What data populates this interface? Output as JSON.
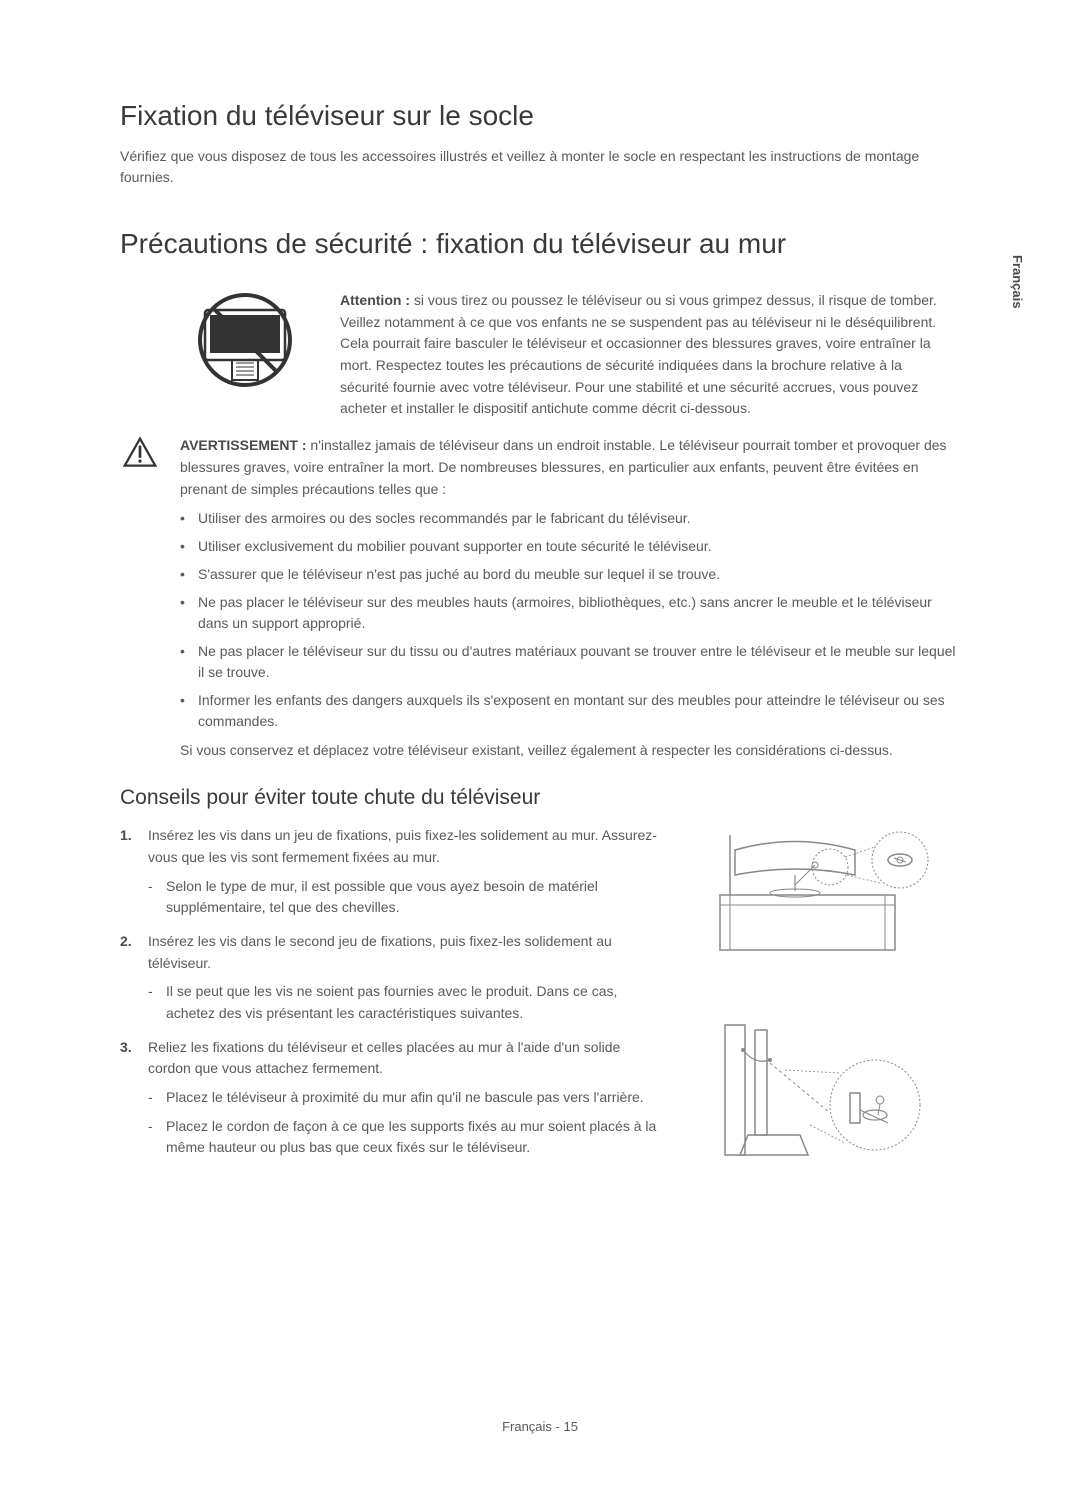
{
  "sideTab": "Français",
  "heading1": "Fixation du téléviseur sur le socle",
  "intro1": "Vérifiez que vous disposez de tous les accessoires illustrés et veillez à monter le socle en respectant les instructions de montage fournies.",
  "heading2": "Précautions de sécurité : fixation du téléviseur au mur",
  "attentionLabel": "Attention :",
  "attentionBody": " si vous tirez ou poussez le téléviseur ou si vous grimpez dessus, il risque de tomber. Veillez notamment à ce que vos enfants ne se suspendent pas au téléviseur ni le déséquilibrent. Cela pourrait faire basculer le téléviseur et occasionner des blessures graves, voire entraîner la mort. Respectez toutes les précautions de sécurité indiquées dans la brochure relative à la sécurité fournie avec votre téléviseur. Pour une stabilité et une sécurité accrues, vous pouvez acheter et installer le dispositif antichute comme décrit ci-dessous.",
  "warningLabel": "AVERTISSEMENT :",
  "warningBody": " n'installez jamais de téléviseur dans un endroit instable. Le téléviseur pourrait tomber et provoquer des blessures graves, voire entraîner la mort. De nombreuses blessures, en particulier aux enfants, peuvent être évitées en prenant de simples précautions telles que :",
  "bullets": [
    "Utiliser des armoires ou des socles recommandés par le fabricant du téléviseur.",
    "Utiliser exclusivement du mobilier pouvant supporter en toute sécurité le téléviseur.",
    "S'assurer que le téléviseur n'est pas juché au bord du meuble sur lequel il se trouve.",
    "Ne pas placer le téléviseur sur des meubles hauts (armoires, bibliothèques, etc.) sans ancrer le meuble et le téléviseur dans un support approprié.",
    "Ne pas placer le téléviseur sur du tissu ou d'autres matériaux pouvant se trouver entre le téléviseur et le meuble sur lequel il se trouve.",
    "Informer les enfants des dangers auxquels ils s'exposent en montant sur des meubles pour atteindre le téléviseur ou ses commandes."
  ],
  "conserve": "Si vous conservez et déplacez votre téléviseur existant, veillez également à respecter les considérations ci-dessus.",
  "heading3": "Conseils pour éviter toute chute du téléviseur",
  "steps": [
    {
      "text": "Insérez les vis dans un jeu de fixations, puis fixez-les solidement au mur. Assurez-vous que les vis sont fermement fixées au mur.",
      "subs": [
        "Selon le type de mur, il est possible que vous ayez besoin de matériel supplémentaire, tel que des chevilles."
      ]
    },
    {
      "text": "Insérez les vis dans le second jeu de fixations, puis fixez-les solidement au téléviseur.",
      "subs": [
        " Il se peut que les vis ne soient pas fournies avec le produit. Dans ce cas, achetez des vis présentant les caractéristiques suivantes."
      ]
    },
    {
      "text": "Reliez les fixations du téléviseur et celles placées au mur à l'aide d'un solide cordon que vous attachez fermement.",
      "subs": [
        "Placez le téléviseur à proximité du mur afin qu'il ne bascule pas vers l'arrière.",
        "Placez le cordon de façon à ce que les supports fixés au mur soient placés à la même hauteur ou plus bas que ceux fixés sur le téléviseur."
      ]
    }
  ],
  "footer": "Français - 15",
  "colors": {
    "text": "#5a5a5a",
    "heading": "#3a3a3a",
    "prohibition": "#333333",
    "diagram_stroke": "#888888",
    "diagram_dash": "#888888"
  }
}
